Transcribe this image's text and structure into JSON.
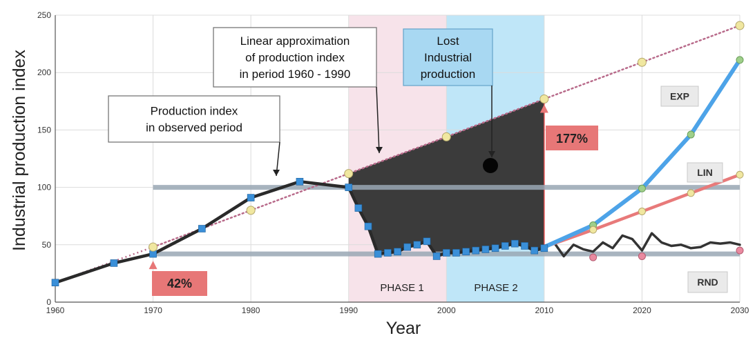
{
  "chart_data": {
    "type": "line",
    "xlabel": "Year",
    "ylabel": "Industrial production index",
    "xlim": [
      1960,
      2030
    ],
    "ylim": [
      0,
      250
    ],
    "x_ticks": [
      1960,
      1970,
      1980,
      1990,
      2000,
      2010,
      2020,
      2030
    ],
    "y_ticks": [
      0,
      50,
      100,
      150,
      200,
      250
    ],
    "grid": true,
    "colors": {
      "observed": "#2a2a2a",
      "observed_markers": "#3a8fd8",
      "linear_approx": "#b86a8a",
      "linear_markers": "#f0e7a0",
      "exp": "#4da3e8",
      "lin": "#e87a7a",
      "rnd": "#333333",
      "reference": "#9aa8b5",
      "lost_area": "#3b3b3b",
      "phase1_bg": "#f7e3ea",
      "phase2_bg": "#bfe6f8",
      "pct_badge": "#e77777"
    },
    "series": [
      {
        "name": "Production index in observed period",
        "x": [
          1960,
          1966,
          1970,
          1975,
          1980,
          1985,
          1990,
          1991,
          1992,
          1993,
          1994,
          1995,
          1996,
          1997,
          1998,
          1999,
          2000,
          2001,
          2002,
          2003,
          2004,
          2005,
          2006,
          2007,
          2008,
          2009,
          2010
        ],
        "y": [
          17,
          34,
          42,
          64,
          91,
          105,
          100,
          82,
          66,
          42,
          43,
          44,
          48,
          50,
          53,
          40,
          43,
          43,
          44,
          45,
          46,
          47,
          49,
          51,
          49,
          45,
          47
        ]
      },
      {
        "name": "Linear approximation of production index in period 1960 - 1990",
        "x": [
          1970,
          1980,
          1990,
          2000,
          2010,
          2020,
          2030
        ],
        "y": [
          48,
          80,
          112,
          144,
          177,
          209,
          241
        ]
      },
      {
        "name": "EXP",
        "x": [
          2010,
          2015,
          2020,
          2025,
          2030
        ],
        "y": [
          48,
          67,
          99,
          146,
          211
        ]
      },
      {
        "name": "LIN",
        "x": [
          2010,
          2015,
          2020,
          2025,
          2030
        ],
        "y": [
          48,
          63,
          79,
          95,
          111
        ]
      },
      {
        "name": "RND",
        "x": [
          2010,
          2011,
          2012,
          2013,
          2014,
          2015,
          2016,
          2017,
          2018,
          2019,
          2020,
          2021,
          2022,
          2023,
          2024,
          2025,
          2026,
          2027,
          2028,
          2029,
          2030
        ],
        "y": [
          48,
          52,
          40,
          50,
          46,
          44,
          52,
          47,
          58,
          55,
          45,
          60,
          52,
          49,
          50,
          47,
          48,
          52,
          51,
          52,
          50
        ]
      }
    ],
    "reference_lines": [
      100,
      42
    ],
    "phases": [
      {
        "label": "PHASE 1",
        "from": 1990,
        "to": 2000
      },
      {
        "label": "PHASE 2",
        "from": 2000,
        "to": 2010
      }
    ],
    "annotations": {
      "observed_callout": [
        "Production index",
        "in observed period"
      ],
      "linear_callout": [
        "Linear approximation",
        "of production index",
        "in period 1960 - 1990"
      ],
      "lost_callout": [
        "Lost",
        "Industrial",
        "production"
      ],
      "pct_1970": "42%",
      "pct_2010": "177%",
      "exp_label": "EXP",
      "lin_label": "LIN",
      "rnd_label": "RND"
    }
  }
}
